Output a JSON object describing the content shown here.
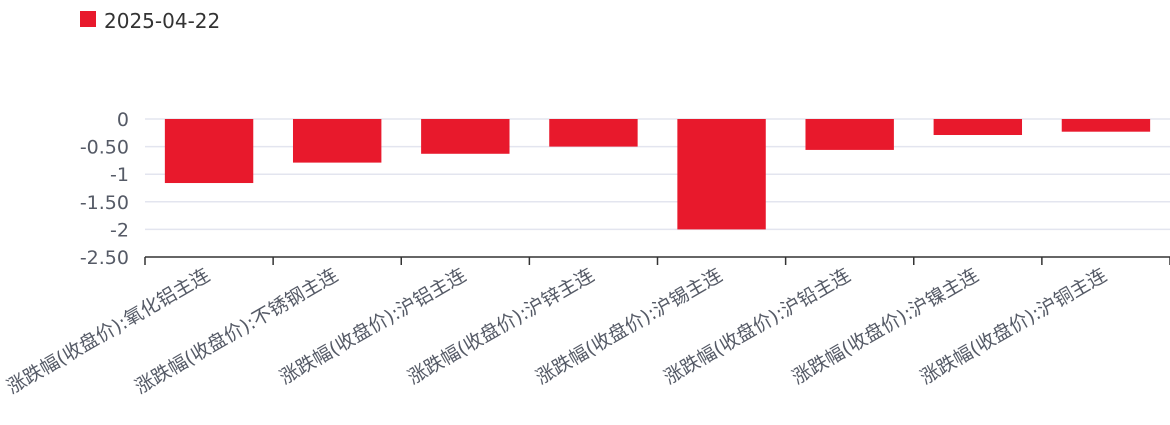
{
  "chart_data": {
    "type": "bar",
    "categories": [
      "涨跌幅(收盘价):氧化铝主连",
      "涨跌幅(收盘价):不锈钢主连",
      "涨跌幅(收盘价):沪铝主连",
      "涨跌幅(收盘价):沪锌主连",
      "涨跌幅(收盘价):沪锡主连",
      "涨跌幅(收盘价):沪铅主连",
      "涨跌幅(收盘价):沪镍主连",
      "涨跌幅(收盘价):沪铜主连"
    ],
    "series": [
      {
        "name": "2025-04-22",
        "color": "#e8192c",
        "values": [
          -1.16,
          -0.79,
          -0.63,
          -0.5,
          -2.0,
          -0.56,
          -0.29,
          -0.23
        ]
      }
    ],
    "y_ticks": [
      "0",
      "-0.50",
      "-1",
      "-1.50",
      "-2",
      "-2.50"
    ],
    "y_tick_values": [
      0,
      -0.5,
      -1,
      -1.5,
      -2,
      -2.5
    ],
    "ylim": [
      -2.5,
      0
    ],
    "grid": true,
    "legend_position": "top-left"
  }
}
